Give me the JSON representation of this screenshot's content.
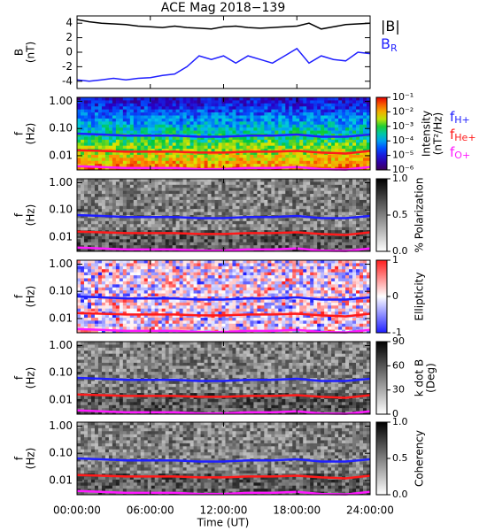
{
  "chart_data": [
    {
      "type": "line",
      "title": "ACE Mag 2018−139",
      "ylabel": [
        "B",
        "(nT)"
      ],
      "x_label": "Time (UT)",
      "xlim": [
        0,
        24
      ],
      "xticks": [
        {
          "value": 0,
          "label": "00:00:00"
        },
        {
          "value": 6,
          "label": "06:00:00"
        },
        {
          "value": 12,
          "label": "12:00:00"
        },
        {
          "value": 18,
          "label": "18:00:00"
        },
        {
          "value": 24,
          "label": "24:00:00"
        }
      ],
      "ylim": [
        -5,
        5
      ],
      "yticks": [
        -4,
        -2,
        0,
        2,
        4
      ],
      "x": [
        0,
        1,
        2,
        3,
        4,
        5,
        6,
        7,
        8,
        9,
        10,
        11,
        12,
        13,
        14,
        15,
        16,
        17,
        18,
        19,
        20,
        21,
        22,
        23,
        24
      ],
      "series": [
        {
          "name": "|B|",
          "color": "#000000",
          "values": [
            4.5,
            4.2,
            4.0,
            3.9,
            3.8,
            3.6,
            3.5,
            3.4,
            3.6,
            3.4,
            3.3,
            3.2,
            3.5,
            3.6,
            3.4,
            3.3,
            3.4,
            3.5,
            3.6,
            4.0,
            3.2,
            3.5,
            3.8,
            3.9,
            4.0
          ]
        },
        {
          "name": "B",
          "subscript": "R",
          "color": "#1f1fff",
          "values": [
            -3.8,
            -4.0,
            -3.8,
            -3.6,
            -3.8,
            -3.6,
            -3.5,
            -3.2,
            -3.0,
            -2.0,
            -0.5,
            -1.0,
            -0.5,
            -1.5,
            -0.5,
            -1.0,
            -1.5,
            -0.5,
            0.5,
            -1.5,
            -0.5,
            -1.0,
            -1.2,
            0.0,
            -0.2
          ]
        }
      ]
    },
    {
      "type": "spectrogram",
      "colormap": "rainbow",
      "ylabel": [
        "f",
        "(Hz)"
      ],
      "log_y": true,
      "ylim": [
        0.003,
        1.4
      ],
      "yticks": [
        {
          "value": 1,
          "label": "1.00"
        },
        {
          "value": 0.1,
          "label": "0.10"
        },
        {
          "value": 0.01,
          "label": "0.01"
        }
      ],
      "colorbar_label": [
        "Intensity",
        "(nT²/Hz)"
      ],
      "colorbar_log": true,
      "colorbar_lim": [
        1e-06,
        0.1
      ],
      "colorbar_ticks": [
        {
          "value": 0.1,
          "label": "10⁻¹"
        },
        {
          "value": 0.01,
          "label": "10⁻²"
        },
        {
          "value": 0.001,
          "label": "10⁻³"
        },
        {
          "value": 0.0001,
          "label": "10⁻⁴"
        },
        {
          "value": 1e-05,
          "label": "10⁻⁵"
        },
        {
          "value": 1e-06,
          "label": "10⁻⁶"
        }
      ],
      "x": [
        0,
        2,
        4,
        6,
        8,
        10,
        12,
        14,
        16,
        18,
        20,
        22,
        24
      ],
      "series": [
        {
          "name": "f",
          "subscript": "H+",
          "color": "#1f1fff",
          "values": [
            0.065,
            0.06,
            0.055,
            0.055,
            0.055,
            0.05,
            0.05,
            0.055,
            0.055,
            0.06,
            0.05,
            0.05,
            0.06
          ]
        },
        {
          "name": "f",
          "subscript": "He+",
          "color": "#ff1a1a",
          "values": [
            0.016,
            0.015,
            0.014,
            0.014,
            0.014,
            0.013,
            0.013,
            0.014,
            0.014,
            0.015,
            0.013,
            0.012,
            0.015
          ]
        },
        {
          "name": "f",
          "subscript": "O+",
          "color": "#ff1aff",
          "values": [
            0.0041,
            0.0038,
            0.0035,
            0.0035,
            0.0035,
            0.0032,
            0.0032,
            0.0035,
            0.0035,
            0.0038,
            0.0032,
            0.0031,
            0.0038
          ]
        }
      ]
    },
    {
      "type": "spectrogram",
      "colormap": "gray",
      "ylabel": [
        "f",
        "(Hz)"
      ],
      "log_y": true,
      "ylim": [
        0.003,
        1.4
      ],
      "yticks": [
        {
          "value": 1,
          "label": "1.00"
        },
        {
          "value": 0.1,
          "label": "0.10"
        },
        {
          "value": 0.01,
          "label": "0.01"
        }
      ],
      "colorbar_label": [
        "% Polarization"
      ],
      "colorbar_lim": [
        0,
        1
      ],
      "colorbar_ticks": [
        {
          "value": 0,
          "label": "0.0"
        },
        {
          "value": 0.5,
          "label": "0.5"
        },
        {
          "value": 1,
          "label": "1.0"
        }
      ]
    },
    {
      "type": "spectrogram",
      "colormap": "bwr",
      "ylabel": [
        "f",
        "(Hz)"
      ],
      "log_y": true,
      "ylim": [
        0.003,
        1.4
      ],
      "yticks": [
        {
          "value": 1,
          "label": "1.00"
        },
        {
          "value": 0.1,
          "label": "0.10"
        },
        {
          "value": 0.01,
          "label": "0.01"
        }
      ],
      "colorbar_label": [
        "Ellipticity"
      ],
      "colorbar_lim": [
        -1,
        1
      ],
      "colorbar_ticks": [
        -1,
        0,
        1
      ]
    },
    {
      "type": "spectrogram",
      "colormap": "gray",
      "ylabel": [
        "f",
        "(Hz)"
      ],
      "log_y": true,
      "ylim": [
        0.003,
        1.4
      ],
      "yticks": [
        {
          "value": 1,
          "label": "1.00"
        },
        {
          "value": 0.1,
          "label": "0.10"
        },
        {
          "value": 0.01,
          "label": "0.01"
        }
      ],
      "colorbar_label": [
        "k dot B",
        "(Deg)"
      ],
      "colorbar_lim": [
        0,
        90
      ],
      "colorbar_ticks": [
        0,
        30,
        60,
        90
      ]
    },
    {
      "type": "spectrogram",
      "colormap": "gray",
      "ylabel": [
        "f",
        "(Hz)"
      ],
      "log_y": true,
      "ylim": [
        0.003,
        1.4
      ],
      "yticks": [
        {
          "value": 1,
          "label": "1.00"
        },
        {
          "value": 0.1,
          "label": "0.10"
        },
        {
          "value": 0.01,
          "label": "0.01"
        }
      ],
      "colorbar_label": [
        "Coherency"
      ],
      "colorbar_lim": [
        0,
        1
      ],
      "colorbar_ticks": [
        {
          "value": 0,
          "label": "0.0"
        },
        {
          "value": 0.5,
          "label": "0.5"
        },
        {
          "value": 1,
          "label": "1.0"
        }
      ]
    }
  ]
}
